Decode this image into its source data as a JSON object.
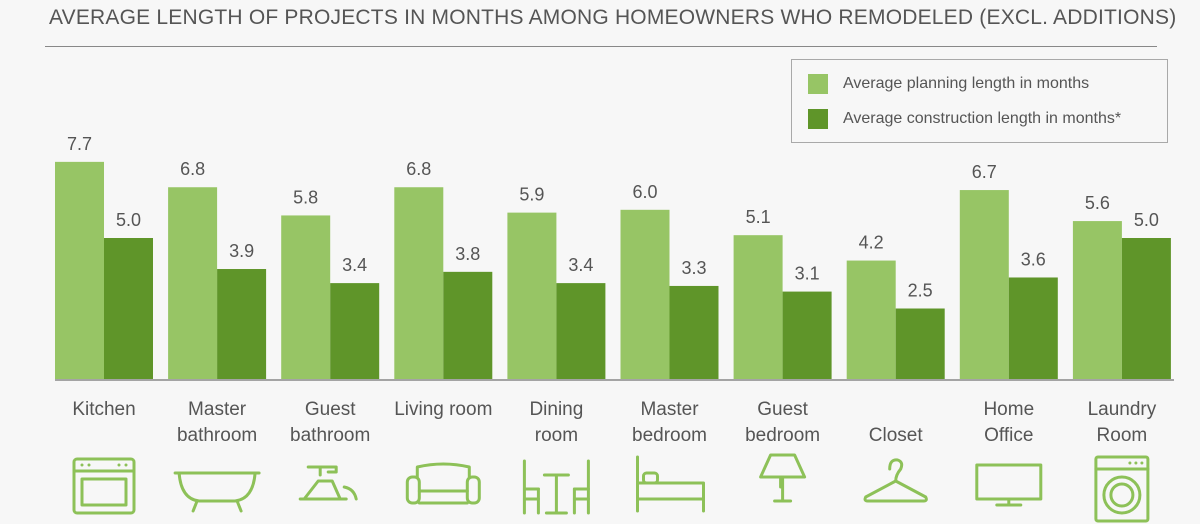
{
  "chart_data": {
    "type": "bar",
    "title": "AVERAGE LENGTH OF PROJECTS IN MONTHS AMONG HOMEOWNERS WHO REMODELED (EXCL. ADDITIONS)",
    "categories": [
      [
        "Kitchen"
      ],
      [
        "Master",
        "bathroom"
      ],
      [
        "Guest",
        "bathroom"
      ],
      [
        "Living room"
      ],
      [
        "Dining",
        "room"
      ],
      [
        "Master",
        "bedroom"
      ],
      [
        "Guest",
        "bedroom"
      ],
      [
        "Closet"
      ],
      [
        "Home",
        "Office"
      ],
      [
        "Laundry",
        "Room"
      ]
    ],
    "icons": [
      "oven-icon",
      "bathtub-icon",
      "sink-icon",
      "sofa-icon",
      "dining-table-icon",
      "bed-icon",
      "lamp-icon",
      "hanger-icon",
      "monitor-icon",
      "washing-machine-icon"
    ],
    "series": [
      {
        "name": "Average planning length in months",
        "color": "#97c565",
        "values": [
          7.7,
          6.8,
          5.8,
          6.8,
          5.9,
          6.0,
          5.1,
          4.2,
          6.7,
          5.6
        ]
      },
      {
        "name": "Average construction length in months*",
        "color": "#5f9529",
        "values": [
          5.0,
          3.9,
          3.4,
          3.8,
          3.4,
          3.3,
          3.1,
          2.5,
          3.6,
          5.0
        ]
      }
    ],
    "value_labels": [
      [
        "7.7",
        "6.8",
        "5.8",
        "6.8",
        "5.9",
        "6.0",
        "5.1",
        "4.2",
        "6.7",
        "5.6"
      ],
      [
        "5.0",
        "3.9",
        "3.4",
        "3.8",
        "3.4",
        "3.3",
        "3.1",
        "2.5",
        "3.6",
        "5.0"
      ]
    ],
    "legend_position": "top-right",
    "ylim": [
      0,
      8.4
    ],
    "xlabel": "",
    "ylabel": ""
  },
  "colors": {
    "icon": "#8dc158",
    "axis": "#888888",
    "text": "#555555"
  }
}
